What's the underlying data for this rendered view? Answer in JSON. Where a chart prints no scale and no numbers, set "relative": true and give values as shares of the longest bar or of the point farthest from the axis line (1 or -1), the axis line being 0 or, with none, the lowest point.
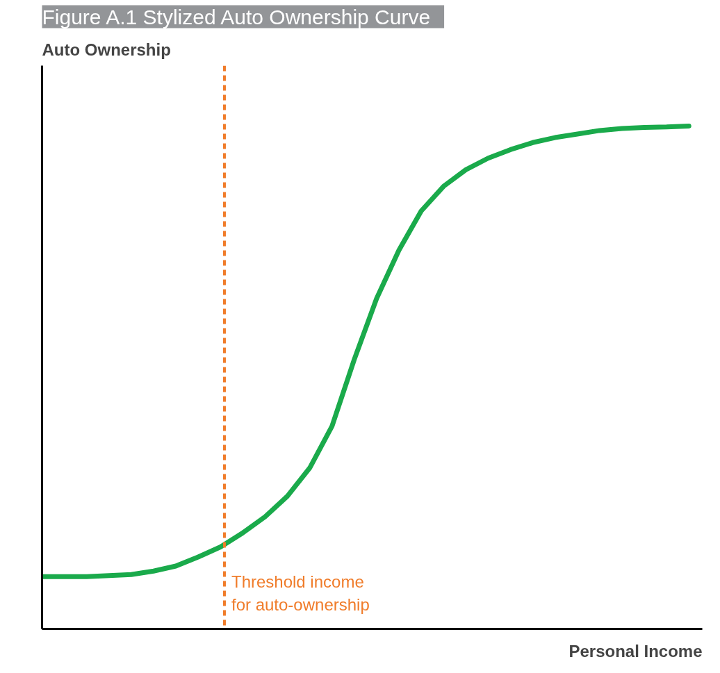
{
  "chart_data": {
    "type": "line",
    "title": "Figure A.1   Stylized Auto Ownership Curve",
    "xlabel": "Personal Income",
    "ylabel": "Auto Ownership",
    "relative": true,
    "categories": [
      null,
      null,
      null,
      null,
      null,
      null,
      null,
      null,
      null,
      null,
      null,
      null,
      null,
      null,
      null,
      null,
      null,
      null,
      null,
      null,
      null,
      null,
      null,
      null,
      null,
      null,
      null,
      null,
      null,
      null
    ],
    "series": [
      {
        "color": "#1aaa4b",
        "values": [
          0.104,
          0.104,
          0.104,
          0.106,
          0.108,
          0.115,
          0.125,
          0.143,
          0.163,
          0.191,
          0.223,
          0.264,
          0.32,
          0.403,
          0.536,
          0.657,
          0.753,
          0.831,
          0.88,
          0.913,
          0.936,
          0.953,
          0.967,
          0.977,
          0.984,
          0.991,
          0.995,
          0.997,
          0.998,
          1.0
        ]
      }
    ],
    "annotations": [
      "Threshold income\nfor auto-ownership"
    ]
  }
}
